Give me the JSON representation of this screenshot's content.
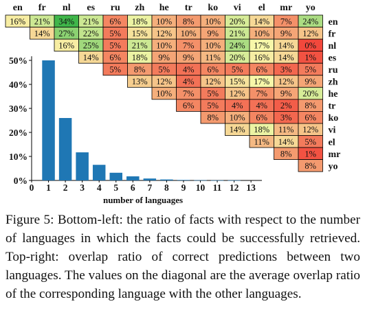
{
  "chart_data": [
    {
      "type": "heatmap",
      "languages": [
        "en",
        "fr",
        "nl",
        "es",
        "ru",
        "zh",
        "he",
        "tr",
        "ko",
        "vi",
        "el",
        "mr",
        "yo"
      ],
      "rows": [
        [
          "16%",
          "21%",
          "34%",
          "21%",
          "6%",
          "18%",
          "10%",
          "8%",
          "10%",
          "20%",
          "14%",
          "7%",
          "24%"
        ],
        [
          "14%",
          "27%",
          "22%",
          "5%",
          "15%",
          "12%",
          "10%",
          "9%",
          "21%",
          "10%",
          "9%",
          "12%"
        ],
        [
          "16%",
          "25%",
          "5%",
          "21%",
          "10%",
          "7%",
          "10%",
          "24%",
          "17%",
          "14%",
          "0%"
        ],
        [
          "14%",
          "6%",
          "18%",
          "9%",
          "9%",
          "11%",
          "20%",
          "16%",
          "14%",
          "1%"
        ],
        [
          "5%",
          "8%",
          "5%",
          "4%",
          "6%",
          "5%",
          "6%",
          "3%",
          "5%"
        ],
        [
          "13%",
          "12%",
          "4%",
          "12%",
          "15%",
          "17%",
          "12%",
          "9%"
        ],
        [
          "10%",
          "7%",
          "5%",
          "12%",
          "7%",
          "9%",
          "20%"
        ],
        [
          "6%",
          "5%",
          "4%",
          "4%",
          "2%",
          "8%"
        ],
        [
          "8%",
          "10%",
          "6%",
          "3%",
          "6%"
        ],
        [
          "14%",
          "18%",
          "11%",
          "12%"
        ],
        [
          "11%",
          "14%",
          "5%"
        ],
        [
          "8%",
          "1%"
        ],
        [
          "8%"
        ]
      ]
    },
    {
      "type": "bar",
      "categories": [
        "0",
        "1",
        "2",
        "3",
        "4",
        "5",
        "6",
        "7",
        "8",
        "9",
        "10",
        "11",
        "12",
        "13"
      ],
      "values": [
        0,
        50,
        26,
        11.7,
        6.5,
        3.2,
        1.7,
        0.8,
        0.4,
        0.2,
        0.1,
        0.05,
        0.05,
        0
      ],
      "xlabel": "number of languages",
      "ylabel": "",
      "yticks": [
        "0%",
        "10%",
        "20%",
        "30%",
        "40%",
        "50%"
      ],
      "ylim": [
        0,
        50
      ],
      "color": "#1f77b4"
    }
  ],
  "caption": "Figure 5: Bottom-left: the ratio of facts with respect to the number of languages in which the facts could be successfully retrieved. Top-right: overlap ratio of correct predictions between two languages. The values on the diagonal are the average overlap ratio of the corresponding language with the other languages."
}
